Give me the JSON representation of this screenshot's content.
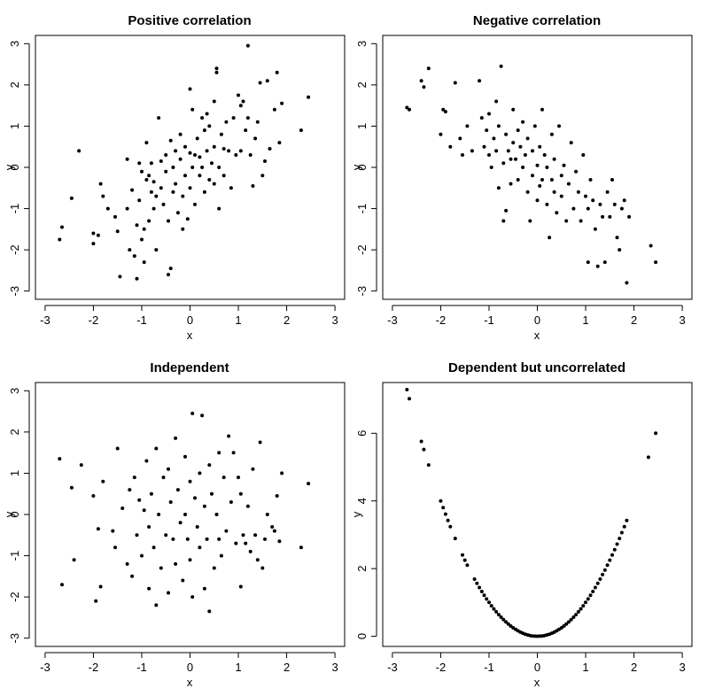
{
  "figure": {
    "background": "#ffffff",
    "point_color": "#000000"
  },
  "chart_data": [
    {
      "type": "scatter",
      "title": "Positive correlation",
      "xlabel": "x",
      "ylabel": "y",
      "xlim": [
        -3.2,
        3.2
      ],
      "ylim": [
        -3.2,
        3.2
      ],
      "xticks": [
        "-3",
        "-2",
        "-1",
        "0",
        "1",
        "2",
        "3"
      ],
      "yticks": [
        "-3",
        "-2",
        "-1",
        "0",
        "1",
        "2",
        "3"
      ],
      "grid": false,
      "points": [
        [
          -2.7,
          -1.75
        ],
        [
          -2.65,
          -1.45
        ],
        [
          -2.45,
          -0.75
        ],
        [
          -2.3,
          0.4
        ],
        [
          -2.0,
          -1.85
        ],
        [
          -2.0,
          -1.6
        ],
        [
          -1.9,
          -1.65
        ],
        [
          -1.85,
          -0.4
        ],
        [
          -1.8,
          -0.7
        ],
        [
          -1.7,
          -1.0
        ],
        [
          -1.55,
          -1.2
        ],
        [
          -1.5,
          -1.55
        ],
        [
          -1.45,
          -2.65
        ],
        [
          -1.3,
          0.2
        ],
        [
          -1.3,
          -1.0
        ],
        [
          -1.25,
          -2.0
        ],
        [
          -1.2,
          -0.55
        ],
        [
          -1.15,
          -2.15
        ],
        [
          -1.1,
          -1.4
        ],
        [
          -1.1,
          -2.7
        ],
        [
          -1.05,
          0.1
        ],
        [
          -1.05,
          -0.8
        ],
        [
          -1.0,
          -0.1
        ],
        [
          -1.0,
          -1.75
        ],
        [
          -0.95,
          -2.3
        ],
        [
          -0.95,
          -1.5
        ],
        [
          -0.9,
          0.6
        ],
        [
          -0.9,
          -0.3
        ],
        [
          -0.85,
          -0.2
        ],
        [
          -0.85,
          -1.3
        ],
        [
          -0.8,
          0.1
        ],
        [
          -0.8,
          -0.6
        ],
        [
          -0.75,
          -0.35
        ],
        [
          -0.75,
          -1.0
        ],
        [
          -0.7,
          -0.7
        ],
        [
          -0.7,
          -2.0
        ],
        [
          -0.65,
          1.2
        ],
        [
          -0.6,
          0.15
        ],
        [
          -0.6,
          -0.5
        ],
        [
          -0.55,
          -0.9
        ],
        [
          -0.5,
          0.3
        ],
        [
          -0.5,
          -0.1
        ],
        [
          -0.45,
          -1.3
        ],
        [
          -0.45,
          -2.6
        ],
        [
          -0.4,
          -2.45
        ],
        [
          -0.4,
          0.65
        ],
        [
          -0.35,
          0.0
        ],
        [
          -0.35,
          -0.6
        ],
        [
          -0.3,
          0.4
        ],
        [
          -0.3,
          -0.4
        ],
        [
          -0.25,
          -1.1
        ],
        [
          -0.2,
          0.2
        ],
        [
          -0.2,
          0.8
        ],
        [
          -0.15,
          -0.7
        ],
        [
          -0.15,
          -1.5
        ],
        [
          -0.1,
          0.5
        ],
        [
          -0.1,
          -0.2
        ],
        [
          -0.05,
          -1.25
        ],
        [
          0.0,
          1.9
        ],
        [
          0.0,
          0.35
        ],
        [
          0.0,
          -0.5
        ],
        [
          0.05,
          0.0
        ],
        [
          0.05,
          1.4
        ],
        [
          0.1,
          0.3
        ],
        [
          0.1,
          -0.9
        ],
        [
          0.15,
          0.7
        ],
        [
          0.2,
          -0.2
        ],
        [
          0.2,
          0.25
        ],
        [
          0.25,
          1.2
        ],
        [
          0.25,
          0.0
        ],
        [
          0.3,
          -0.6
        ],
        [
          0.3,
          0.9
        ],
        [
          0.35,
          0.4
        ],
        [
          0.35,
          1.3
        ],
        [
          0.4,
          -0.3
        ],
        [
          0.4,
          1.0
        ],
        [
          0.45,
          0.1
        ],
        [
          0.5,
          1.6
        ],
        [
          0.5,
          -0.4
        ],
        [
          0.5,
          0.5
        ],
        [
          0.55,
          2.3
        ],
        [
          0.55,
          2.4
        ],
        [
          0.6,
          0.0
        ],
        [
          0.6,
          -1.0
        ],
        [
          0.65,
          0.8
        ],
        [
          0.7,
          -0.2
        ],
        [
          0.7,
          0.45
        ],
        [
          0.75,
          1.1
        ],
        [
          0.8,
          0.4
        ],
        [
          0.85,
          -0.5
        ],
        [
          0.9,
          1.2
        ],
        [
          0.95,
          0.3
        ],
        [
          1.0,
          1.75
        ],
        [
          1.05,
          0.4
        ],
        [
          1.05,
          1.5
        ],
        [
          1.1,
          1.6
        ],
        [
          1.15,
          0.9
        ],
        [
          1.2,
          1.2
        ],
        [
          1.2,
          2.95
        ],
        [
          1.25,
          0.3
        ],
        [
          1.3,
          -0.45
        ],
        [
          1.35,
          0.7
        ],
        [
          1.4,
          1.1
        ],
        [
          1.45,
          2.05
        ],
        [
          1.5,
          -0.2
        ],
        [
          1.55,
          0.15
        ],
        [
          1.6,
          2.1
        ],
        [
          1.65,
          0.45
        ],
        [
          1.75,
          1.4
        ],
        [
          1.8,
          2.3
        ],
        [
          1.85,
          0.6
        ],
        [
          1.9,
          1.55
        ],
        [
          2.3,
          0.9
        ],
        [
          2.45,
          1.7
        ]
      ]
    },
    {
      "type": "scatter",
      "title": "Negative correlation",
      "xlabel": "x",
      "ylabel": "y",
      "xlim": [
        -3.2,
        3.2
      ],
      "ylim": [
        -3.2,
        3.2
      ],
      "xticks": [
        "-3",
        "-2",
        "-1",
        "0",
        "1",
        "2",
        "3"
      ],
      "yticks": [
        "-3",
        "-2",
        "-1",
        "0",
        "1",
        "2",
        "3"
      ],
      "grid": false,
      "points": [
        [
          -2.7,
          1.45
        ],
        [
          -2.65,
          1.4
        ],
        [
          -2.4,
          2.1
        ],
        [
          -2.35,
          1.95
        ],
        [
          -2.25,
          2.4
        ],
        [
          -2.0,
          0.8
        ],
        [
          -1.95,
          1.4
        ],
        [
          -1.9,
          1.35
        ],
        [
          -1.8,
          0.5
        ],
        [
          -1.7,
          2.05
        ],
        [
          -1.6,
          0.7
        ],
        [
          -1.55,
          0.3
        ],
        [
          -1.45,
          1.0
        ],
        [
          -1.35,
          0.4
        ],
        [
          -1.2,
          2.1
        ],
        [
          -1.15,
          1.2
        ],
        [
          -1.1,
          0.5
        ],
        [
          -1.05,
          0.9
        ],
        [
          -1.0,
          1.3
        ],
        [
          -1.0,
          0.3
        ],
        [
          -0.95,
          0.0
        ],
        [
          -0.9,
          0.7
        ],
        [
          -0.85,
          1.6
        ],
        [
          -0.85,
          0.4
        ],
        [
          -0.8,
          -0.5
        ],
        [
          -0.8,
          1.0
        ],
        [
          -0.75,
          2.45
        ],
        [
          -0.7,
          0.1
        ],
        [
          -0.7,
          -1.3
        ],
        [
          -0.65,
          0.8
        ],
        [
          -0.65,
          -1.05
        ],
        [
          -0.6,
          0.4
        ],
        [
          -0.55,
          0.2
        ],
        [
          -0.55,
          -0.4
        ],
        [
          -0.5,
          1.4
        ],
        [
          -0.5,
          0.6
        ],
        [
          -0.45,
          0.2
        ],
        [
          -0.4,
          -0.3
        ],
        [
          -0.4,
          0.9
        ],
        [
          -0.35,
          0.5
        ],
        [
          -0.3,
          0.0
        ],
        [
          -0.3,
          1.1
        ],
        [
          -0.25,
          0.3
        ],
        [
          -0.2,
          -0.6
        ],
        [
          -0.2,
          0.7
        ],
        [
          -0.15,
          -1.3
        ],
        [
          -0.1,
          0.4
        ],
        [
          -0.1,
          -0.2
        ],
        [
          -0.05,
          1.0
        ],
        [
          0.0,
          0.05
        ],
        [
          0.0,
          -0.8
        ],
        [
          0.05,
          0.5
        ],
        [
          0.05,
          -0.45
        ],
        [
          0.1,
          -0.3
        ],
        [
          0.1,
          1.4
        ],
        [
          0.15,
          0.3
        ],
        [
          0.2,
          -0.9
        ],
        [
          0.2,
          0.0
        ],
        [
          0.25,
          -1.7
        ],
        [
          0.3,
          0.8
        ],
        [
          0.3,
          -0.3
        ],
        [
          0.35,
          -0.6
        ],
        [
          0.35,
          0.2
        ],
        [
          0.4,
          -1.1
        ],
        [
          0.45,
          1.0
        ],
        [
          0.5,
          -0.2
        ],
        [
          0.5,
          -0.7
        ],
        [
          0.55,
          0.05
        ],
        [
          0.6,
          -1.3
        ],
        [
          0.65,
          -0.4
        ],
        [
          0.7,
          0.6
        ],
        [
          0.75,
          -1.0
        ],
        [
          0.8,
          -0.1
        ],
        [
          0.85,
          -0.6
        ],
        [
          0.9,
          -1.3
        ],
        [
          0.95,
          0.3
        ],
        [
          1.0,
          -0.7
        ],
        [
          1.05,
          -1.0
        ],
        [
          1.05,
          -2.3
        ],
        [
          1.1,
          -0.3
        ],
        [
          1.15,
          -0.8
        ],
        [
          1.2,
          -1.5
        ],
        [
          1.25,
          -2.4
        ],
        [
          1.3,
          -0.9
        ],
        [
          1.35,
          -1.2
        ],
        [
          1.4,
          -2.3
        ],
        [
          1.45,
          -0.6
        ],
        [
          1.5,
          -1.2
        ],
        [
          1.55,
          -0.3
        ],
        [
          1.6,
          -0.9
        ],
        [
          1.65,
          -1.7
        ],
        [
          1.7,
          -2.0
        ],
        [
          1.75,
          -1.0
        ],
        [
          1.8,
          -0.8
        ],
        [
          1.85,
          -2.8
        ],
        [
          1.9,
          -1.2
        ],
        [
          2.35,
          -1.9
        ],
        [
          2.45,
          -2.3
        ]
      ]
    },
    {
      "type": "scatter",
      "title": "Independent",
      "xlabel": "x",
      "ylabel": "y",
      "xlim": [
        -3.2,
        3.2
      ],
      "ylim": [
        -3.2,
        3.2
      ],
      "xticks": [
        "-3",
        "-2",
        "-1",
        "0",
        "1",
        "2",
        "3"
      ],
      "yticks": [
        "-3",
        "-2",
        "-1",
        "0",
        "1",
        "2",
        "3"
      ],
      "grid": false,
      "points": [
        [
          -2.65,
          -1.7
        ],
        [
          -2.7,
          1.35
        ],
        [
          -2.45,
          0.65
        ],
        [
          -2.4,
          -1.1
        ],
        [
          -2.25,
          1.2
        ],
        [
          -2.0,
          0.45
        ],
        [
          -1.95,
          -2.1
        ],
        [
          -1.9,
          -0.35
        ],
        [
          -1.85,
          -1.75
        ],
        [
          -1.8,
          0.8
        ],
        [
          -1.6,
          -0.4
        ],
        [
          -1.55,
          -0.8
        ],
        [
          -1.5,
          1.6
        ],
        [
          -1.4,
          0.15
        ],
        [
          -1.3,
          -1.2
        ],
        [
          -1.25,
          0.6
        ],
        [
          -1.2,
          -1.5
        ],
        [
          -1.15,
          0.9
        ],
        [
          -1.1,
          -0.5
        ],
        [
          -1.05,
          0.35
        ],
        [
          -1.0,
          -1.0
        ],
        [
          -0.95,
          0.1
        ],
        [
          -0.9,
          1.3
        ],
        [
          -0.85,
          -1.8
        ],
        [
          -0.85,
          -0.3
        ],
        [
          -0.8,
          0.5
        ],
        [
          -0.75,
          -0.8
        ],
        [
          -0.7,
          1.6
        ],
        [
          -0.7,
          -2.2
        ],
        [
          -0.65,
          0.0
        ],
        [
          -0.6,
          -1.3
        ],
        [
          -0.55,
          0.9
        ],
        [
          -0.5,
          -0.5
        ],
        [
          -0.45,
          1.1
        ],
        [
          -0.45,
          -1.9
        ],
        [
          -0.4,
          0.3
        ],
        [
          -0.35,
          -0.6
        ],
        [
          -0.3,
          1.85
        ],
        [
          -0.3,
          -1.2
        ],
        [
          -0.25,
          0.6
        ],
        [
          -0.2,
          -0.2
        ],
        [
          -0.15,
          -1.6
        ],
        [
          -0.1,
          1.4
        ],
        [
          -0.1,
          0.0
        ],
        [
          -0.05,
          -0.6
        ],
        [
          0.0,
          0.8
        ],
        [
          0.0,
          -1.1
        ],
        [
          0.05,
          2.45
        ],
        [
          0.05,
          -2.0
        ],
        [
          0.1,
          0.4
        ],
        [
          0.15,
          -0.3
        ],
        [
          0.2,
          1.0
        ],
        [
          0.2,
          -0.8
        ],
        [
          0.25,
          2.4
        ],
        [
          0.3,
          -1.8
        ],
        [
          0.3,
          0.2
        ],
        [
          0.35,
          -0.6
        ],
        [
          0.4,
          -2.35
        ],
        [
          0.4,
          1.2
        ],
        [
          0.45,
          0.5
        ],
        [
          0.5,
          -1.3
        ],
        [
          0.55,
          0.0
        ],
        [
          0.6,
          1.5
        ],
        [
          0.6,
          -0.6
        ],
        [
          0.65,
          -1.0
        ],
        [
          0.7,
          0.9
        ],
        [
          0.75,
          -0.4
        ],
        [
          0.8,
          1.9
        ],
        [
          0.85,
          0.3
        ],
        [
          0.9,
          1.5
        ],
        [
          0.95,
          -0.7
        ],
        [
          1.0,
          0.9
        ],
        [
          1.05,
          0.5
        ],
        [
          1.05,
          -1.75
        ],
        [
          1.1,
          -0.5
        ],
        [
          1.15,
          -0.7
        ],
        [
          1.2,
          0.2
        ],
        [
          1.25,
          -0.9
        ],
        [
          1.3,
          1.1
        ],
        [
          1.35,
          -0.5
        ],
        [
          1.4,
          -1.1
        ],
        [
          1.45,
          1.75
        ],
        [
          1.5,
          -1.3
        ],
        [
          1.55,
          -0.6
        ],
        [
          1.6,
          0.0
        ],
        [
          1.7,
          -0.3
        ],
        [
          1.75,
          -0.4
        ],
        [
          1.8,
          0.45
        ],
        [
          1.85,
          -0.65
        ],
        [
          1.9,
          1.0
        ],
        [
          2.3,
          -0.8
        ],
        [
          2.45,
          0.75
        ]
      ]
    },
    {
      "type": "scatter",
      "title": "Dependent but uncorrelated",
      "xlabel": "x",
      "ylabel": "y",
      "xlim": [
        -3.2,
        3.2
      ],
      "ylim": [
        -0.3,
        7.5
      ],
      "xticks": [
        "-3",
        "-2",
        "-1",
        "0",
        "1",
        "2",
        "3"
      ],
      "yticks": [
        "0",
        "2",
        "4",
        "6"
      ],
      "grid": false,
      "relation": "y = x^2",
      "x_values": [
        -2.7,
        -2.65,
        -2.4,
        -2.35,
        -2.25,
        -2.0,
        -1.95,
        -1.9,
        -1.85,
        -1.8,
        -1.7,
        -1.55,
        -1.5,
        -1.45,
        -1.3,
        -1.25,
        -1.2,
        -1.15,
        -1.1,
        -1.05,
        -1.0,
        -0.95,
        -0.9,
        -0.85,
        -0.8,
        -0.75,
        -0.7,
        -0.65,
        -0.6,
        -0.55,
        -0.5,
        -0.45,
        -0.4,
        -0.35,
        -0.3,
        -0.25,
        -0.2,
        -0.15,
        -0.1,
        -0.05,
        0.0,
        0.05,
        0.1,
        0.15,
        0.2,
        0.25,
        0.3,
        0.35,
        0.4,
        0.45,
        0.5,
        0.55,
        0.6,
        0.65,
        0.7,
        0.75,
        0.8,
        0.85,
        0.9,
        0.95,
        1.0,
        1.05,
        1.1,
        1.15,
        1.2,
        1.25,
        1.3,
        1.35,
        1.4,
        1.45,
        1.5,
        1.55,
        1.6,
        1.65,
        1.7,
        1.75,
        1.8,
        1.85,
        2.3,
        2.45
      ]
    }
  ]
}
